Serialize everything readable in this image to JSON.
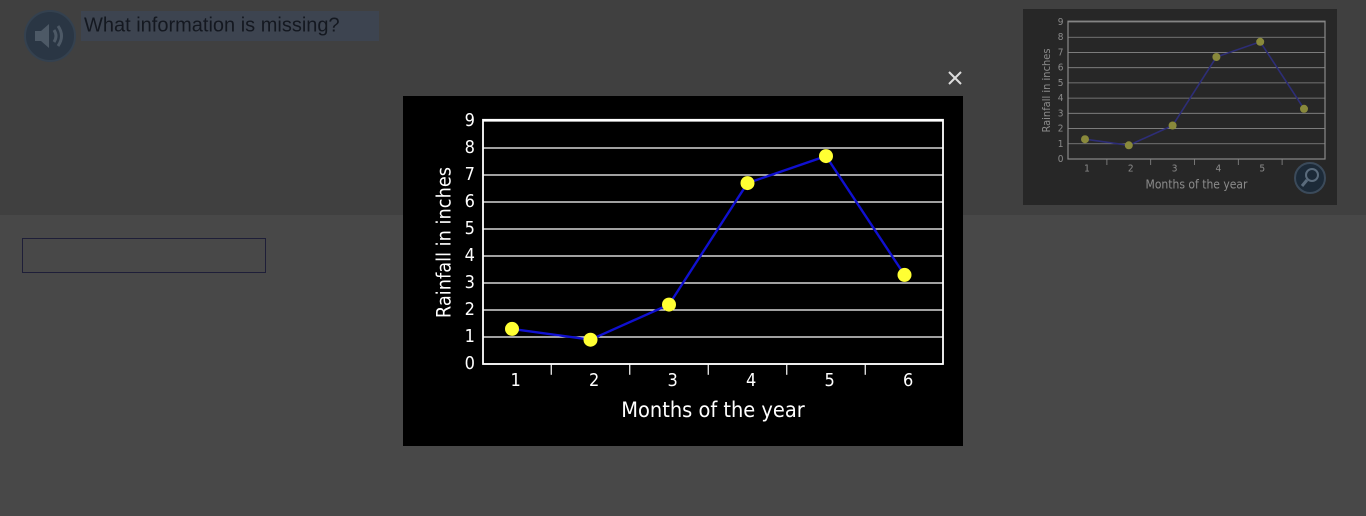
{
  "question": "What information is missing?",
  "chart_data": {
    "type": "line",
    "x_label": "Months of the year",
    "y_label": "Rainfall in inches",
    "categories": [
      "1",
      "2",
      "3",
      "4",
      "5",
      "6"
    ],
    "values": [
      1.3,
      0.9,
      2.2,
      6.7,
      7.7,
      3.3
    ],
    "color": "#1010d0",
    "marker_color": "#ffff33",
    "ylim": [
      0,
      9
    ],
    "yticks": [
      0,
      1,
      2,
      3,
      4,
      5,
      6,
      7,
      8,
      9
    ],
    "grid": true
  }
}
